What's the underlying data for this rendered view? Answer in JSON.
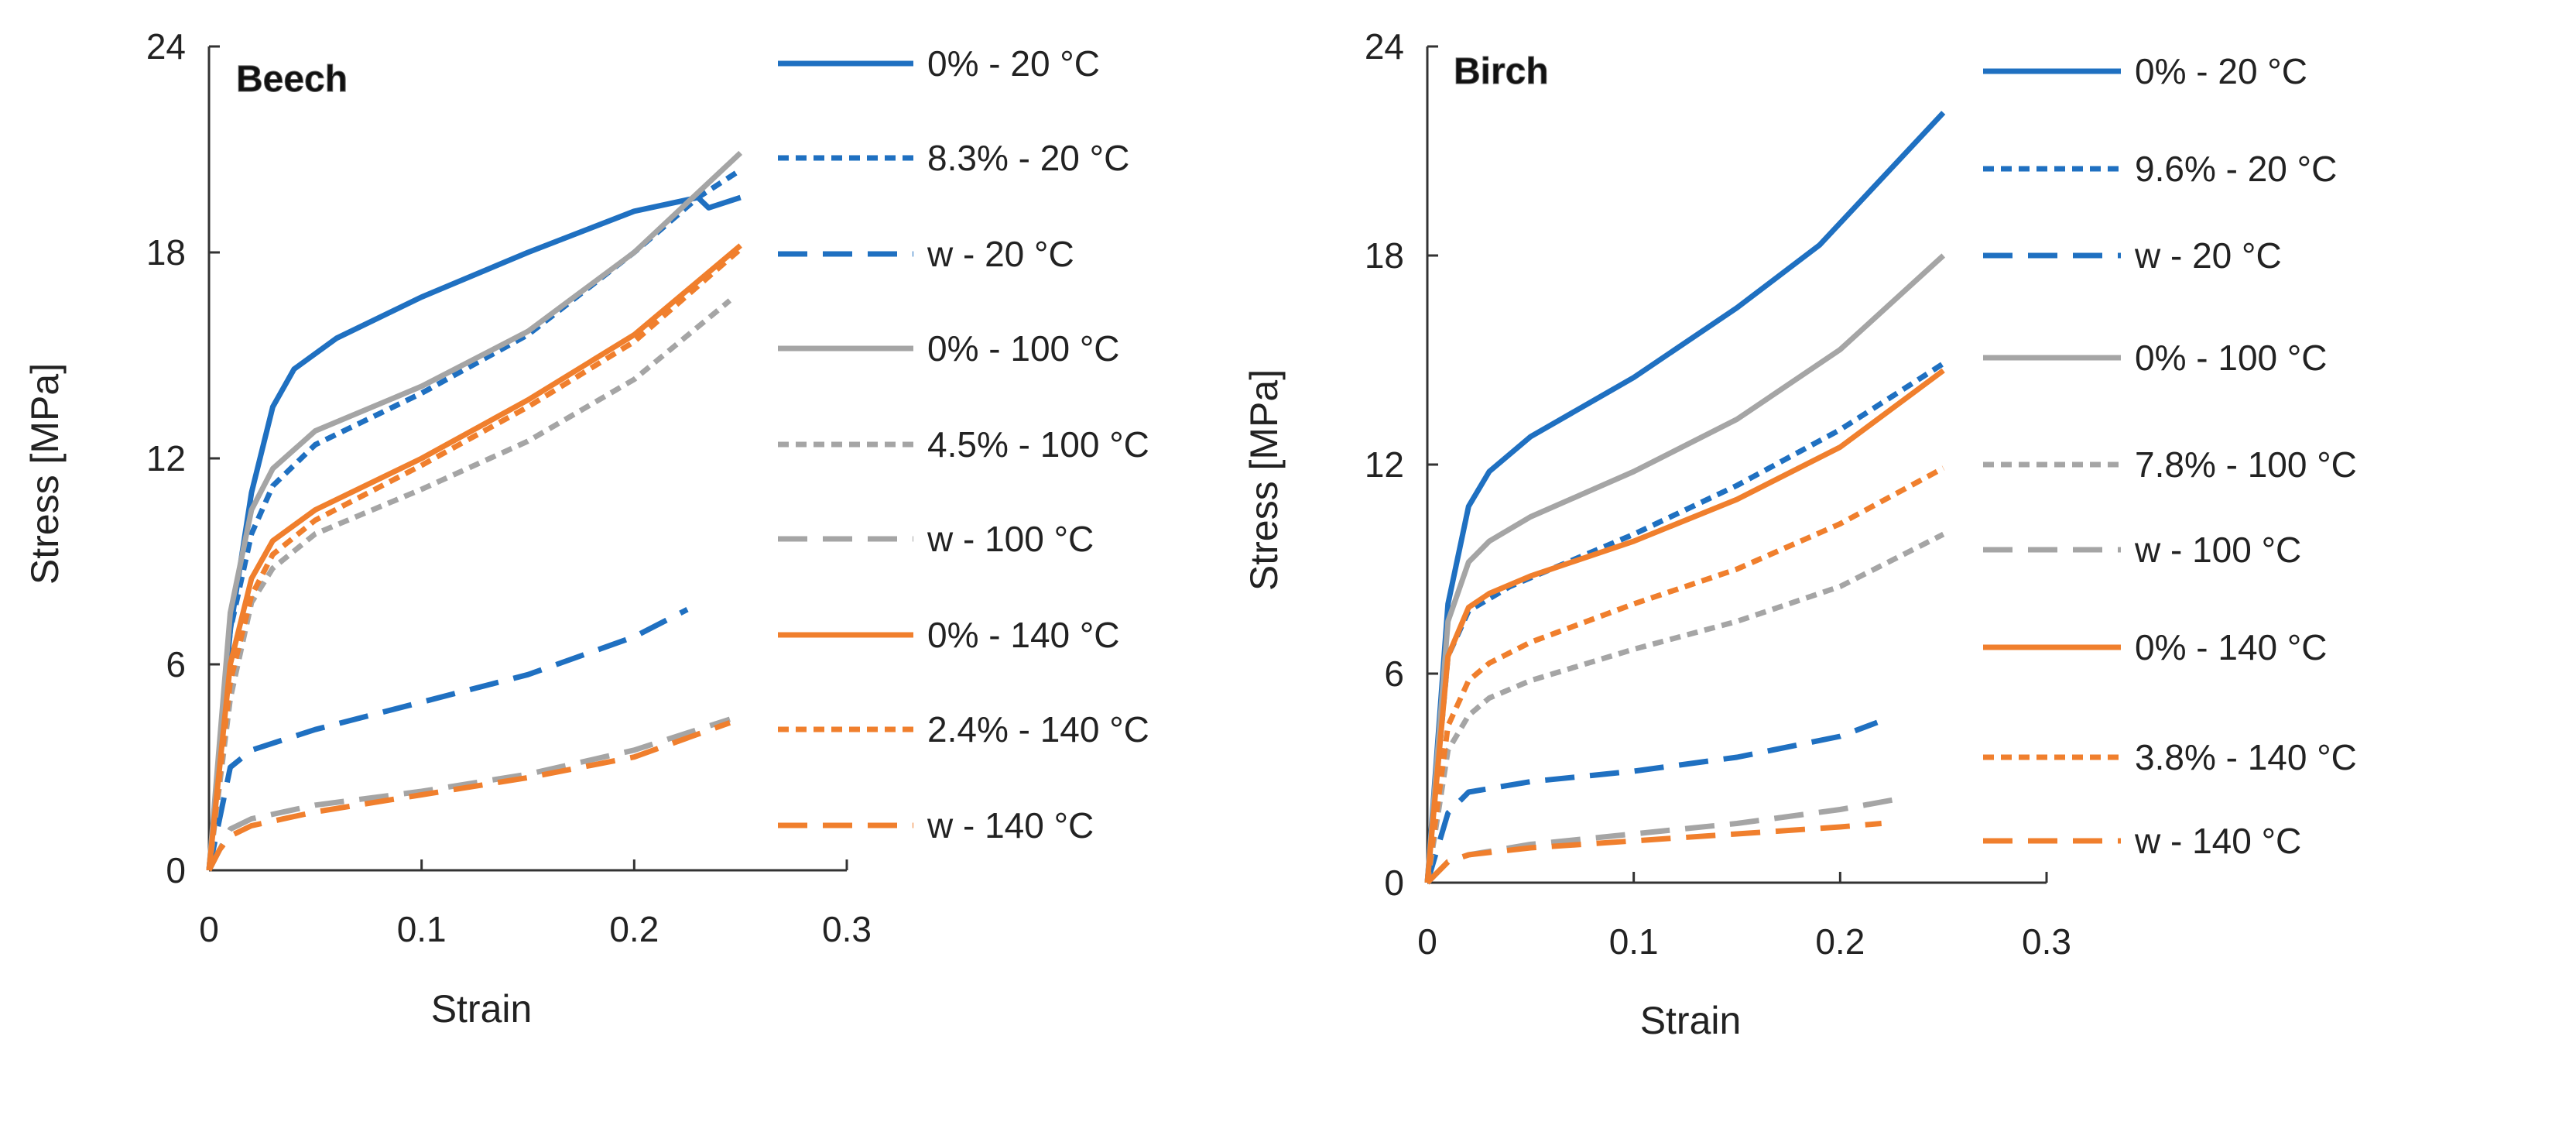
{
  "chart_data": [
    {
      "type": "line",
      "title": "Beech",
      "xlabel": "Strain",
      "ylabel": "Stress [MPa]",
      "xlim": [
        0,
        0.3
      ],
      "ylim": [
        0,
        24
      ],
      "xticks": [
        "0",
        "0.1",
        "0.2",
        "0.3"
      ],
      "yticks": [
        "0",
        "6",
        "12",
        "18",
        "24"
      ],
      "grid": false,
      "legend_position": "right",
      "series": [
        {
          "name": "0% - 20 °C",
          "color": "#1f70c1",
          "style": "solid",
          "points": [
            [
              0,
              0
            ],
            [
              0.01,
              7
            ],
            [
              0.02,
              11
            ],
            [
              0.03,
              13.5
            ],
            [
              0.04,
              14.6
            ],
            [
              0.06,
              15.5
            ],
            [
              0.1,
              16.7
            ],
            [
              0.15,
              18
            ],
            [
              0.2,
              19.2
            ],
            [
              0.23,
              19.6
            ],
            [
              0.235,
              19.3
            ],
            [
              0.25,
              19.6
            ]
          ]
        },
        {
          "name": "8.3% - 20 °C",
          "color": "#1f70c1",
          "style": "short-dash",
          "points": [
            [
              0,
              0
            ],
            [
              0.01,
              7
            ],
            [
              0.02,
              9.8
            ],
            [
              0.03,
              11.2
            ],
            [
              0.05,
              12.4
            ],
            [
              0.1,
              13.9
            ],
            [
              0.15,
              15.6
            ],
            [
              0.2,
              18
            ],
            [
              0.23,
              19.6
            ],
            [
              0.25,
              20.4
            ]
          ]
        },
        {
          "name": "w - 20 °C",
          "color": "#1f70c1",
          "style": "long-dash",
          "points": [
            [
              0,
              0
            ],
            [
              0.005,
              1.5
            ],
            [
              0.01,
              3
            ],
            [
              0.02,
              3.5
            ],
            [
              0.05,
              4.1
            ],
            [
              0.1,
              4.9
            ],
            [
              0.15,
              5.7
            ],
            [
              0.2,
              6.8
            ],
            [
              0.225,
              7.6
            ]
          ]
        },
        {
          "name": "0% - 100 °C",
          "color": "#a5a5a5",
          "style": "solid",
          "points": [
            [
              0,
              0
            ],
            [
              0.01,
              7.5
            ],
            [
              0.02,
              10.5
            ],
            [
              0.03,
              11.7
            ],
            [
              0.05,
              12.8
            ],
            [
              0.1,
              14.1
            ],
            [
              0.15,
              15.7
            ],
            [
              0.2,
              18
            ],
            [
              0.25,
              20.9
            ]
          ]
        },
        {
          "name": "4.5% - 100 °C",
          "color": "#a5a5a5",
          "style": "short-dash",
          "points": [
            [
              0,
              0
            ],
            [
              0.01,
              5
            ],
            [
              0.02,
              7.8
            ],
            [
              0.03,
              8.8
            ],
            [
              0.05,
              9.8
            ],
            [
              0.1,
              11.1
            ],
            [
              0.15,
              12.5
            ],
            [
              0.2,
              14.3
            ],
            [
              0.245,
              16.6
            ]
          ]
        },
        {
          "name": "w - 100 °C",
          "color": "#a5a5a5",
          "style": "long-dash",
          "points": [
            [
              0,
              0
            ],
            [
              0.01,
              1.2
            ],
            [
              0.02,
              1.5
            ],
            [
              0.05,
              1.9
            ],
            [
              0.1,
              2.3
            ],
            [
              0.15,
              2.8
            ],
            [
              0.2,
              3.5
            ],
            [
              0.245,
              4.4
            ]
          ]
        },
        {
          "name": "0% - 140 °C",
          "color": "#f07f2d",
          "style": "solid",
          "points": [
            [
              0,
              0
            ],
            [
              0.01,
              6
            ],
            [
              0.02,
              8.5
            ],
            [
              0.03,
              9.6
            ],
            [
              0.05,
              10.5
            ],
            [
              0.1,
              12
            ],
            [
              0.15,
              13.7
            ],
            [
              0.2,
              15.6
            ],
            [
              0.25,
              18.2
            ]
          ]
        },
        {
          "name": "2.4% - 140 °C",
          "color": "#f07f2d",
          "style": "short-dash",
          "points": [
            [
              0,
              0
            ],
            [
              0.01,
              5.5
            ],
            [
              0.02,
              8
            ],
            [
              0.03,
              9.2
            ],
            [
              0.05,
              10.2
            ],
            [
              0.1,
              11.8
            ],
            [
              0.15,
              13.5
            ],
            [
              0.2,
              15.4
            ],
            [
              0.25,
              18.1
            ]
          ]
        },
        {
          "name": "w - 140 °C",
          "color": "#f07f2d",
          "style": "long-dash",
          "points": [
            [
              0,
              0
            ],
            [
              0.005,
              0.6
            ],
            [
              0.01,
              1
            ],
            [
              0.02,
              1.3
            ],
            [
              0.05,
              1.7
            ],
            [
              0.1,
              2.2
            ],
            [
              0.15,
              2.7
            ],
            [
              0.2,
              3.3
            ],
            [
              0.245,
              4.3
            ]
          ]
        }
      ]
    },
    {
      "type": "line",
      "title": "Birch",
      "xlabel": "Strain",
      "ylabel": "Stress [MPa]",
      "xlim": [
        0,
        0.3
      ],
      "ylim": [
        0,
        24
      ],
      "xticks": [
        "0",
        "0.1",
        "0.2",
        "0.3"
      ],
      "yticks": [
        "0",
        "6",
        "12",
        "18",
        "24"
      ],
      "grid": false,
      "legend_position": "right",
      "series": [
        {
          "name": "0% - 20 °C",
          "color": "#1f70c1",
          "style": "solid",
          "points": [
            [
              0,
              0
            ],
            [
              0.01,
              8
            ],
            [
              0.02,
              10.8
            ],
            [
              0.03,
              11.8
            ],
            [
              0.05,
              12.8
            ],
            [
              0.1,
              14.5
            ],
            [
              0.15,
              16.5
            ],
            [
              0.19,
              18.3
            ],
            [
              0.25,
              22.1
            ]
          ]
        },
        {
          "name": "9.6% - 20 °C",
          "color": "#1f70c1",
          "style": "short-dash",
          "points": [
            [
              0,
              0
            ],
            [
              0.01,
              6.5
            ],
            [
              0.02,
              7.8
            ],
            [
              0.04,
              8.5
            ],
            [
              0.1,
              10
            ],
            [
              0.15,
              11.4
            ],
            [
              0.2,
              13
            ],
            [
              0.25,
              14.9
            ]
          ]
        },
        {
          "name": "w - 20 °C",
          "color": "#1f70c1",
          "style": "long-dash",
          "points": [
            [
              0,
              0
            ],
            [
              0.005,
              1
            ],
            [
              0.01,
              2
            ],
            [
              0.02,
              2.6
            ],
            [
              0.05,
              2.9
            ],
            [
              0.1,
              3.2
            ],
            [
              0.15,
              3.6
            ],
            [
              0.2,
              4.2
            ],
            [
              0.218,
              4.6
            ]
          ]
        },
        {
          "name": "0% - 100 °C",
          "color": "#a5a5a5",
          "style": "solid",
          "points": [
            [
              0,
              0
            ],
            [
              0.01,
              7.5
            ],
            [
              0.02,
              9.2
            ],
            [
              0.03,
              9.8
            ],
            [
              0.05,
              10.5
            ],
            [
              0.1,
              11.8
            ],
            [
              0.15,
              13.3
            ],
            [
              0.2,
              15.3
            ],
            [
              0.25,
              18
            ]
          ]
        },
        {
          "name": "7.8% - 100 °C",
          "color": "#a5a5a5",
          "style": "short-dash",
          "points": [
            [
              0,
              0
            ],
            [
              0.01,
              3.8
            ],
            [
              0.02,
              4.8
            ],
            [
              0.03,
              5.3
            ],
            [
              0.05,
              5.8
            ],
            [
              0.1,
              6.7
            ],
            [
              0.15,
              7.5
            ],
            [
              0.2,
              8.5
            ],
            [
              0.25,
              10
            ]
          ]
        },
        {
          "name": "w - 100 °C",
          "color": "#a5a5a5",
          "style": "long-dash",
          "points": [
            [
              0,
              0
            ],
            [
              0.01,
              0.6
            ],
            [
              0.02,
              0.8
            ],
            [
              0.05,
              1.1
            ],
            [
              0.1,
              1.4
            ],
            [
              0.15,
              1.7
            ],
            [
              0.2,
              2.1
            ],
            [
              0.228,
              2.4
            ]
          ]
        },
        {
          "name": "0% - 140 °C",
          "color": "#f07f2d",
          "style": "solid",
          "points": [
            [
              0,
              0
            ],
            [
              0.01,
              6.5
            ],
            [
              0.02,
              7.9
            ],
            [
              0.03,
              8.3
            ],
            [
              0.05,
              8.8
            ],
            [
              0.1,
              9.8
            ],
            [
              0.15,
              11
            ],
            [
              0.2,
              12.5
            ],
            [
              0.25,
              14.7
            ]
          ]
        },
        {
          "name": "3.8% - 140 °C",
          "color": "#f07f2d",
          "style": "short-dash",
          "points": [
            [
              0,
              0
            ],
            [
              0.01,
              4.5
            ],
            [
              0.02,
              5.8
            ],
            [
              0.03,
              6.3
            ],
            [
              0.05,
              6.9
            ],
            [
              0.1,
              8
            ],
            [
              0.15,
              9
            ],
            [
              0.2,
              10.3
            ],
            [
              0.25,
              11.9
            ]
          ]
        },
        {
          "name": "w - 140 °C",
          "color": "#f07f2d",
          "style": "long-dash",
          "points": [
            [
              0,
              0
            ],
            [
              0.01,
              0.6
            ],
            [
              0.02,
              0.8
            ],
            [
              0.05,
              1
            ],
            [
              0.1,
              1.2
            ],
            [
              0.15,
              1.4
            ],
            [
              0.2,
              1.6
            ],
            [
              0.22,
              1.7
            ]
          ]
        }
      ]
    }
  ]
}
